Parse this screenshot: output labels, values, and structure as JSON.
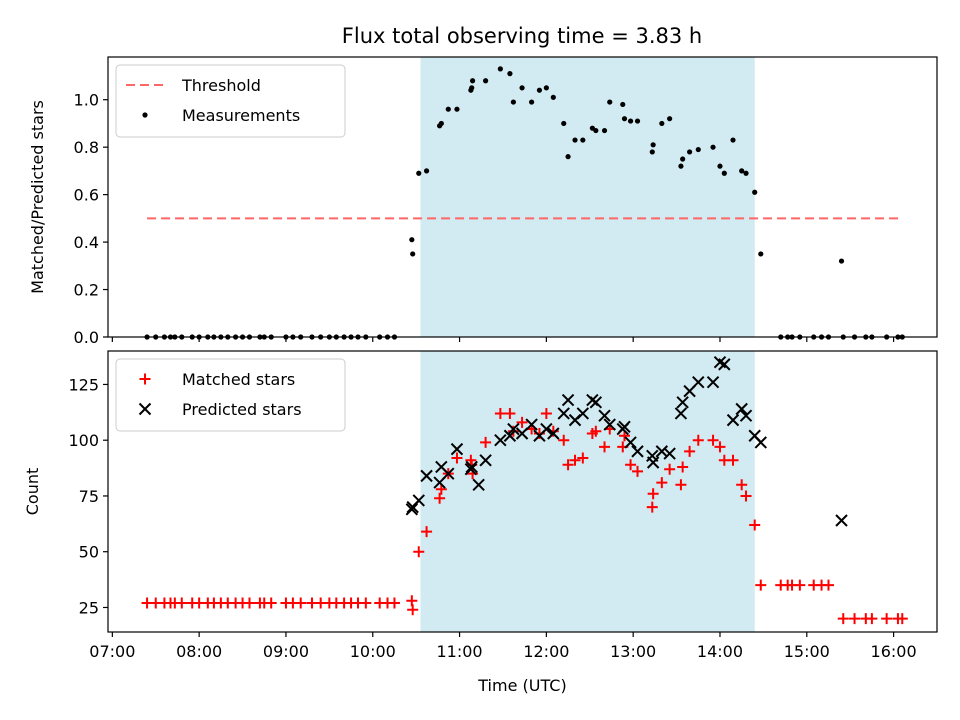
{
  "figure": {
    "title": "Flux total observing time = 3.83 h",
    "x_tick_labels": [
      "07:00",
      "08:00",
      "09:00",
      "10:00",
      "11:00",
      "12:00",
      "13:00",
      "14:00",
      "15:00",
      "16:00"
    ],
    "colors": {
      "shade": "#add8e6",
      "threshold": "#ff6666",
      "measurement": "#000000",
      "matched": "#ff0000",
      "predicted": "#000000"
    }
  },
  "chart_data": [
    {
      "type": "scatter",
      "ylabel": "Matched/Predicted stars",
      "xlim_hours": [
        6.95,
        16.5
      ],
      "ylim": [
        0,
        1.18
      ],
      "yticks": [
        "0.0",
        "0.2",
        "0.4",
        "0.6",
        "0.8",
        "1.0"
      ],
      "legend_placement": "upper-left",
      "shaded_span_hours": [
        10.55,
        14.4
      ],
      "threshold": {
        "name": "Threshold",
        "value": 0.5,
        "x_range_hours": [
          7.4,
          16.1
        ]
      },
      "series": [
        {
          "name": "Measurements",
          "points": [
            [
              7.4,
              0
            ],
            [
              7.5,
              0
            ],
            [
              7.6,
              0
            ],
            [
              7.67,
              0
            ],
            [
              7.72,
              0
            ],
            [
              7.8,
              0
            ],
            [
              7.92,
              0
            ],
            [
              8.0,
              0
            ],
            [
              8.1,
              0
            ],
            [
              8.17,
              0
            ],
            [
              8.25,
              0
            ],
            [
              8.33,
              0
            ],
            [
              8.42,
              0
            ],
            [
              8.5,
              0
            ],
            [
              8.58,
              0
            ],
            [
              8.7,
              0
            ],
            [
              8.75,
              0
            ],
            [
              8.83,
              0
            ],
            [
              9.0,
              0
            ],
            [
              9.08,
              0
            ],
            [
              9.17,
              0
            ],
            [
              9.3,
              0
            ],
            [
              9.4,
              0
            ],
            [
              9.5,
              0
            ],
            [
              9.58,
              0
            ],
            [
              9.67,
              0
            ],
            [
              9.75,
              0
            ],
            [
              9.83,
              0
            ],
            [
              9.92,
              0
            ],
            [
              10.08,
              0
            ],
            [
              10.17,
              0
            ],
            [
              10.25,
              0
            ],
            [
              10.45,
              0.41
            ],
            [
              10.46,
              0.35
            ],
            [
              10.53,
              0.69
            ],
            [
              10.62,
              0.7
            ],
            [
              10.77,
              0.89
            ],
            [
              10.79,
              0.9
            ],
            [
              10.87,
              0.96
            ],
            [
              10.97,
              0.96
            ],
            [
              11.13,
              1.04
            ],
            [
              11.14,
              1.05
            ],
            [
              11.15,
              1.08
            ],
            [
              11.3,
              1.08
            ],
            [
              11.47,
              1.13
            ],
            [
              11.58,
              1.11
            ],
            [
              11.62,
              0.99
            ],
            [
              11.72,
              1.05
            ],
            [
              11.83,
              0.99
            ],
            [
              11.92,
              1.04
            ],
            [
              12.0,
              1.05
            ],
            [
              12.08,
              1.01
            ],
            [
              12.2,
              0.9
            ],
            [
              12.25,
              0.76
            ],
            [
              12.33,
              0.83
            ],
            [
              12.42,
              0.83
            ],
            [
              12.53,
              0.88
            ],
            [
              12.57,
              0.87
            ],
            [
              12.67,
              0.87
            ],
            [
              12.73,
              0.99
            ],
            [
              12.88,
              0.98
            ],
            [
              12.9,
              0.92
            ],
            [
              12.97,
              0.91
            ],
            [
              13.05,
              0.91
            ],
            [
              13.22,
              0.78
            ],
            [
              13.23,
              0.81
            ],
            [
              13.33,
              0.9
            ],
            [
              13.42,
              0.92
            ],
            [
              13.55,
              0.72
            ],
            [
              13.57,
              0.75
            ],
            [
              13.65,
              0.78
            ],
            [
              13.75,
              0.79
            ],
            [
              13.92,
              0.8
            ],
            [
              14.0,
              0.72
            ],
            [
              14.05,
              0.69
            ],
            [
              14.15,
              0.83
            ],
            [
              14.25,
              0.7
            ],
            [
              14.3,
              0.69
            ],
            [
              14.4,
              0.61
            ],
            [
              14.47,
              0.35
            ],
            [
              14.7,
              0
            ],
            [
              14.78,
              0
            ],
            [
              14.83,
              0
            ],
            [
              14.92,
              0
            ],
            [
              15.08,
              0
            ],
            [
              15.17,
              0
            ],
            [
              15.25,
              0
            ],
            [
              15.42,
              0
            ],
            [
              15.55,
              0
            ],
            [
              15.68,
              0
            ],
            [
              15.75,
              0
            ],
            [
              15.92,
              0
            ],
            [
              16.05,
              0
            ],
            [
              16.1,
              0
            ],
            [
              15.4,
              0.32
            ]
          ]
        }
      ]
    },
    {
      "type": "scatter",
      "xlabel": "Time (UTC)",
      "ylabel": "Count",
      "xlim_hours": [
        6.95,
        16.5
      ],
      "ylim": [
        14,
        140
      ],
      "yticks": [
        "25",
        "50",
        "75",
        "100",
        "125"
      ],
      "legend_placement": "upper-left",
      "shaded_span_hours": [
        10.55,
        14.4
      ],
      "series": [
        {
          "name": "Matched stars",
          "marker": "plus",
          "points": [
            [
              7.4,
              27
            ],
            [
              7.5,
              27
            ],
            [
              7.6,
              27
            ],
            [
              7.67,
              27
            ],
            [
              7.72,
              27
            ],
            [
              7.8,
              27
            ],
            [
              7.92,
              27
            ],
            [
              8.0,
              27
            ],
            [
              8.1,
              27
            ],
            [
              8.17,
              27
            ],
            [
              8.25,
              27
            ],
            [
              8.33,
              27
            ],
            [
              8.42,
              27
            ],
            [
              8.5,
              27
            ],
            [
              8.58,
              27
            ],
            [
              8.7,
              27
            ],
            [
              8.75,
              27
            ],
            [
              8.83,
              27
            ],
            [
              9.0,
              27
            ],
            [
              9.08,
              27
            ],
            [
              9.17,
              27
            ],
            [
              9.3,
              27
            ],
            [
              9.4,
              27
            ],
            [
              9.5,
              27
            ],
            [
              9.58,
              27
            ],
            [
              9.67,
              27
            ],
            [
              9.75,
              27
            ],
            [
              9.83,
              27
            ],
            [
              9.92,
              27
            ],
            [
              10.08,
              27
            ],
            [
              10.17,
              27
            ],
            [
              10.25,
              27
            ],
            [
              10.45,
              28
            ],
            [
              10.46,
              24
            ],
            [
              10.53,
              50
            ],
            [
              10.62,
              59
            ],
            [
              10.77,
              74
            ],
            [
              10.79,
              78
            ],
            [
              10.87,
              85
            ],
            [
              10.97,
              92
            ],
            [
              11.13,
              91
            ],
            [
              11.14,
              89
            ],
            [
              11.15,
              85
            ],
            [
              11.3,
              99
            ],
            [
              11.47,
              112
            ],
            [
              11.58,
              112
            ],
            [
              11.62,
              104
            ],
            [
              11.72,
              108
            ],
            [
              11.83,
              105
            ],
            [
              11.92,
              103
            ],
            [
              12.0,
              112
            ],
            [
              12.08,
              104
            ],
            [
              12.2,
              100
            ],
            [
              12.25,
              89
            ],
            [
              12.33,
              91
            ],
            [
              12.42,
              92
            ],
            [
              12.53,
              103
            ],
            [
              12.57,
              104
            ],
            [
              12.67,
              97
            ],
            [
              12.73,
              105
            ],
            [
              12.88,
              97
            ],
            [
              12.9,
              102
            ],
            [
              12.97,
              89
            ],
            [
              13.05,
              86
            ],
            [
              13.22,
              70
            ],
            [
              13.23,
              76
            ],
            [
              13.33,
              81
            ],
            [
              13.42,
              87
            ],
            [
              13.55,
              80
            ],
            [
              13.57,
              88
            ],
            [
              13.65,
              95
            ],
            [
              13.75,
              100
            ],
            [
              13.92,
              100
            ],
            [
              14.0,
              97
            ],
            [
              14.05,
              91
            ],
            [
              14.15,
              91
            ],
            [
              14.25,
              80
            ],
            [
              14.3,
              75
            ],
            [
              14.4,
              62
            ],
            [
              14.47,
              35
            ],
            [
              14.7,
              35
            ],
            [
              14.78,
              35
            ],
            [
              14.83,
              35
            ],
            [
              14.92,
              35
            ],
            [
              15.08,
              35
            ],
            [
              15.17,
              35
            ],
            [
              15.25,
              35
            ],
            [
              15.42,
              20
            ],
            [
              15.55,
              20
            ],
            [
              15.68,
              20
            ],
            [
              15.75,
              20
            ],
            [
              15.92,
              20
            ],
            [
              16.05,
              20
            ],
            [
              16.1,
              20
            ]
          ]
        },
        {
          "name": "Predicted stars",
          "marker": "x",
          "points": [
            [
              10.45,
              69
            ],
            [
              10.46,
              70
            ],
            [
              10.53,
              73
            ],
            [
              10.62,
              84
            ],
            [
              10.77,
              81
            ],
            [
              10.79,
              88
            ],
            [
              10.87,
              85
            ],
            [
              10.97,
              96
            ],
            [
              11.13,
              87
            ],
            [
              11.14,
              88
            ],
            [
              11.22,
              80
            ],
            [
              11.3,
              91
            ],
            [
              11.47,
              100
            ],
            [
              11.58,
              102
            ],
            [
              11.62,
              105
            ],
            [
              11.72,
              103
            ],
            [
              11.83,
              107
            ],
            [
              11.92,
              102
            ],
            [
              12.0,
              105
            ],
            [
              12.08,
              103
            ],
            [
              12.2,
              112
            ],
            [
              12.25,
              118
            ],
            [
              12.33,
              109
            ],
            [
              12.42,
              112
            ],
            [
              12.53,
              118
            ],
            [
              12.57,
              117
            ],
            [
              12.67,
              111
            ],
            [
              12.73,
              107
            ],
            [
              12.88,
              105
            ],
            [
              12.9,
              106
            ],
            [
              12.97,
              99
            ],
            [
              13.05,
              95
            ],
            [
              13.22,
              93
            ],
            [
              13.23,
              90
            ],
            [
              13.33,
              95
            ],
            [
              13.42,
              94
            ],
            [
              13.55,
              112
            ],
            [
              13.57,
              117
            ],
            [
              13.65,
              122
            ],
            [
              13.75,
              126
            ],
            [
              13.92,
              126
            ],
            [
              14.0,
              135
            ],
            [
              14.05,
              134
            ],
            [
              14.15,
              109
            ],
            [
              14.25,
              114
            ],
            [
              14.3,
              111
            ],
            [
              14.4,
              102
            ],
            [
              14.47,
              99
            ],
            [
              15.4,
              64
            ]
          ]
        }
      ]
    }
  ]
}
